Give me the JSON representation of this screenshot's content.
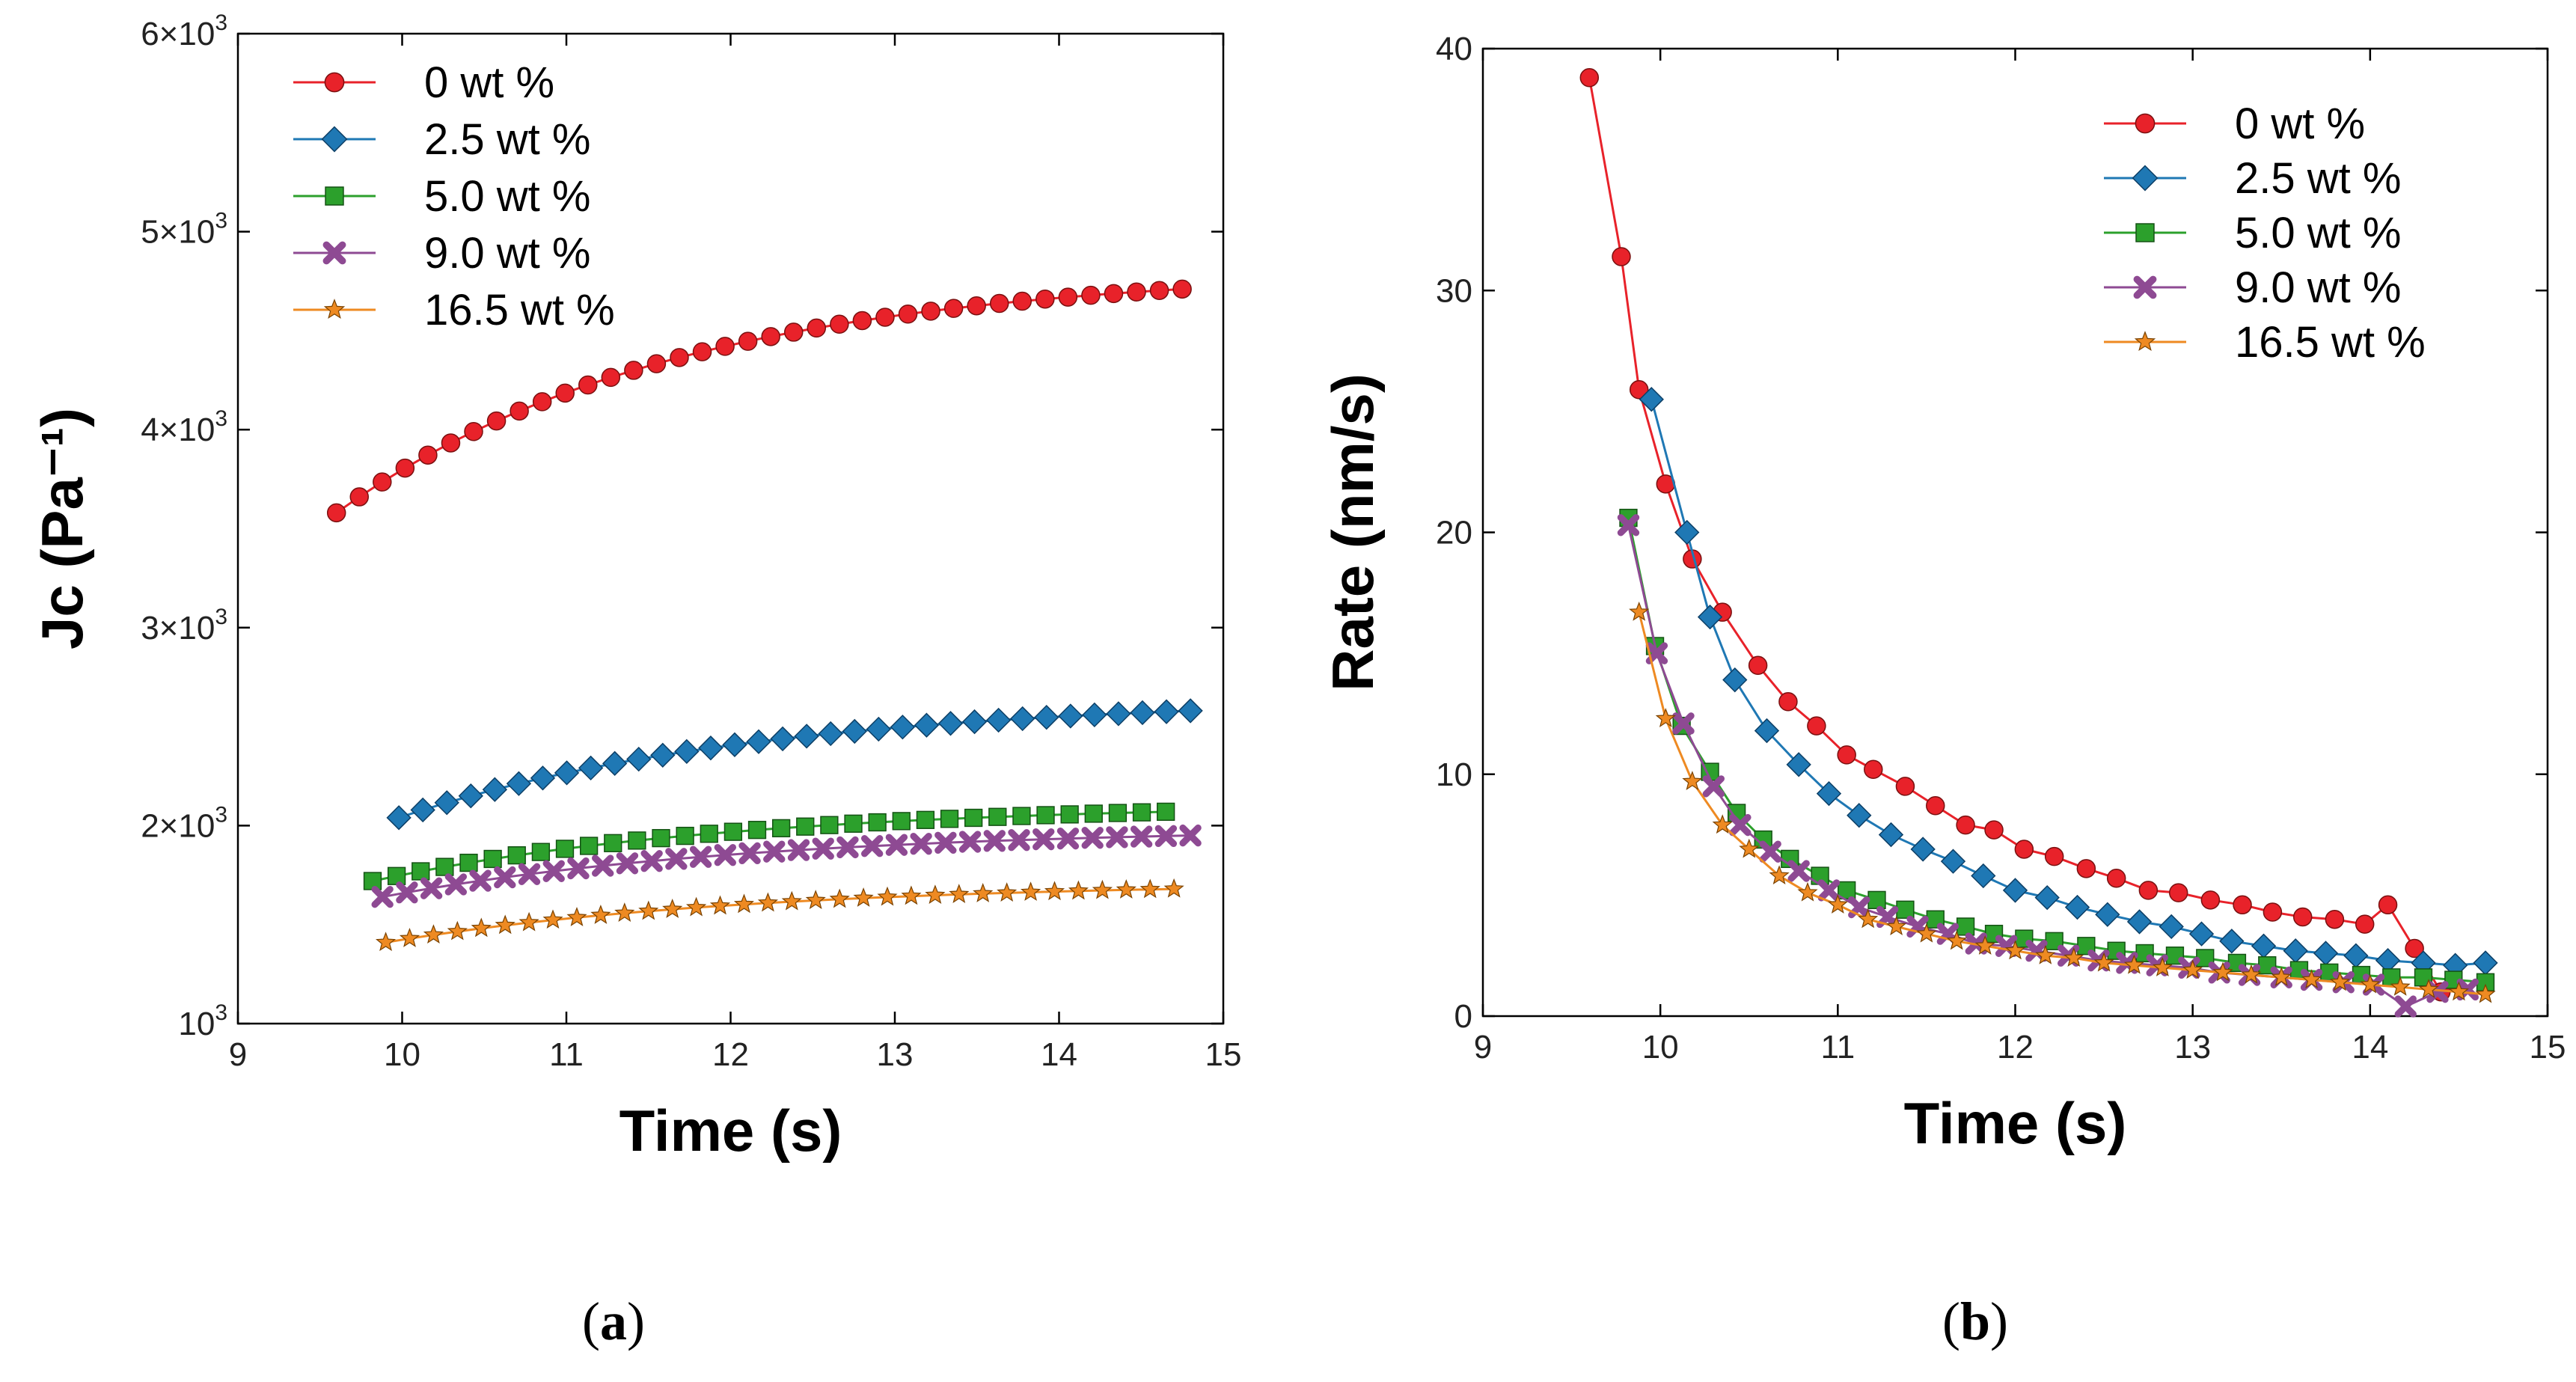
{
  "colors": {
    "s0": "#e8222a",
    "s25": "#1f78b4",
    "s50": "#2ca02c",
    "s90": "#8e4a93",
    "s165": "#ee8a22"
  },
  "captions": {
    "a": "a",
    "b": "b"
  },
  "chart_data": [
    {
      "type": "scatter",
      "title": "",
      "xlabel": "Time (s)",
      "ylabel": "Jc (Pa⁻¹)",
      "xlim": [
        9,
        15
      ],
      "ylim": [
        1000,
        6000
      ],
      "xticks": [
        "9",
        "10",
        "11",
        "12",
        "13",
        "14",
        "15"
      ],
      "yticks": [
        {
          "value": 1000,
          "mant": "10",
          "exp": "3"
        },
        {
          "value": 2000,
          "mant": "2×10",
          "exp": "3"
        },
        {
          "value": 3000,
          "mant": "3×10",
          "exp": "3"
        },
        {
          "value": 4000,
          "mant": "4×10",
          "exp": "3"
        },
        {
          "value": 5000,
          "mant": "5×10",
          "exp": "3"
        },
        {
          "value": 6000,
          "mant": "6×10",
          "exp": "3"
        }
      ],
      "legend_position": "top-left",
      "series": [
        {
          "name": "0 wt %",
          "marker": "circle",
          "color": "#e8222a",
          "x_start": 9.6,
          "x_end": 14.75,
          "n": 38,
          "y_start": 3580,
          "y_end": 4710,
          "shape": 2.5
        },
        {
          "name": "2.5 wt %",
          "marker": "diamond",
          "color": "#1f78b4",
          "x_start": 9.98,
          "x_end": 14.8,
          "n": 34,
          "y_start": 2040,
          "y_end": 2580,
          "shape": 2.2
        },
        {
          "name": "5.0 wt %",
          "marker": "square",
          "color": "#2ca02c",
          "x_start": 9.82,
          "x_end": 14.65,
          "n": 34,
          "y_start": 1720,
          "y_end": 2070,
          "shape": 2.2
        },
        {
          "name": "9.0 wt %",
          "marker": "x",
          "color": "#8e4a93",
          "x_start": 9.88,
          "x_end": 14.8,
          "n": 34,
          "y_start": 1640,
          "y_end": 1950,
          "shape": 2.2
        },
        {
          "name": "16.5 wt %",
          "marker": "star",
          "color": "#ee8a22",
          "x_start": 9.9,
          "x_end": 14.7,
          "n": 34,
          "y_start": 1410,
          "y_end": 1680,
          "shape": 2.2
        }
      ]
    },
    {
      "type": "line",
      "title": "",
      "xlabel": "Time (s)",
      "ylabel": "Rate (nm/s)",
      "xlim": [
        9,
        15
      ],
      "ylim": [
        0,
        40
      ],
      "xticks": [
        "9",
        "10",
        "11",
        "12",
        "13",
        "14",
        "15"
      ],
      "yticks": [
        "0",
        "10",
        "20",
        "30",
        "40"
      ],
      "legend_position": "top-right",
      "series": [
        {
          "name": "0 wt %",
          "marker": "circle",
          "color": "#e8222a",
          "points": [
            [
              9.6,
              38.8
            ],
            [
              9.78,
              31.4
            ],
            [
              9.88,
              25.9
            ],
            [
              10.03,
              22.0
            ],
            [
              10.18,
              18.9
            ],
            [
              10.35,
              16.7
            ],
            [
              10.55,
              14.5
            ],
            [
              10.72,
              13.0
            ],
            [
              10.88,
              12.0
            ],
            [
              11.05,
              10.8
            ],
            [
              11.2,
              10.2
            ],
            [
              11.38,
              9.5
            ],
            [
              11.55,
              8.7
            ],
            [
              11.72,
              7.9
            ],
            [
              11.88,
              7.7
            ],
            [
              12.05,
              6.9
            ],
            [
              12.22,
              6.6
            ],
            [
              12.4,
              6.1
            ],
            [
              12.57,
              5.7
            ],
            [
              12.75,
              5.2
            ],
            [
              12.92,
              5.1
            ],
            [
              13.1,
              4.8
            ],
            [
              13.28,
              4.6
            ],
            [
              13.45,
              4.3
            ],
            [
              13.62,
              4.1
            ],
            [
              13.8,
              4.0
            ],
            [
              13.97,
              3.8
            ],
            [
              14.1,
              4.6
            ],
            [
              14.25,
              2.8
            ],
            [
              14.4,
              1.0
            ]
          ]
        },
        {
          "name": "2.5 wt %",
          "marker": "diamond",
          "color": "#1f78b4",
          "points": [
            [
              9.95,
              25.5
            ],
            [
              10.15,
              20.0
            ],
            [
              10.28,
              16.5
            ],
            [
              10.42,
              13.9
            ],
            [
              10.6,
              11.8
            ],
            [
              10.78,
              10.4
            ],
            [
              10.95,
              9.2
            ],
            [
              11.12,
              8.3
            ],
            [
              11.3,
              7.5
            ],
            [
              11.48,
              6.9
            ],
            [
              11.65,
              6.4
            ],
            [
              11.82,
              5.8
            ],
            [
              12.0,
              5.2
            ],
            [
              12.18,
              4.9
            ],
            [
              12.35,
              4.5
            ],
            [
              12.52,
              4.2
            ],
            [
              12.7,
              3.9
            ],
            [
              12.88,
              3.7
            ],
            [
              13.05,
              3.4
            ],
            [
              13.22,
              3.1
            ],
            [
              13.4,
              2.9
            ],
            [
              13.58,
              2.7
            ],
            [
              13.75,
              2.6
            ],
            [
              13.92,
              2.5
            ],
            [
              14.1,
              2.3
            ],
            [
              14.3,
              2.2
            ],
            [
              14.48,
              2.1
            ],
            [
              14.65,
              2.2
            ]
          ]
        },
        {
          "name": "5.0 wt %",
          "marker": "square",
          "color": "#2ca02c",
          "points": [
            [
              9.82,
              20.6
            ],
            [
              9.97,
              15.3
            ],
            [
              10.12,
              12.0
            ],
            [
              10.28,
              10.1
            ],
            [
              10.43,
              8.4
            ],
            [
              10.58,
              7.3
            ],
            [
              10.73,
              6.5
            ],
            [
              10.9,
              5.8
            ],
            [
              11.05,
              5.2
            ],
            [
              11.22,
              4.8
            ],
            [
              11.38,
              4.4
            ],
            [
              11.55,
              4.0
            ],
            [
              11.72,
              3.7
            ],
            [
              11.88,
              3.4
            ],
            [
              12.05,
              3.2
            ],
            [
              12.22,
              3.1
            ],
            [
              12.4,
              2.9
            ],
            [
              12.57,
              2.7
            ],
            [
              12.73,
              2.6
            ],
            [
              12.9,
              2.5
            ],
            [
              13.07,
              2.4
            ],
            [
              13.25,
              2.2
            ],
            [
              13.42,
              2.1
            ],
            [
              13.6,
              1.9
            ],
            [
              13.77,
              1.8
            ],
            [
              13.95,
              1.7
            ],
            [
              14.12,
              1.6
            ],
            [
              14.3,
              1.6
            ],
            [
              14.47,
              1.5
            ],
            [
              14.65,
              1.4
            ]
          ]
        },
        {
          "name": "9.0 wt %",
          "marker": "x",
          "color": "#8e4a93",
          "points": [
            [
              9.82,
              20.3
            ],
            [
              9.98,
              15.0
            ],
            [
              10.13,
              12.1
            ],
            [
              10.3,
              9.5
            ],
            [
              10.45,
              7.9
            ],
            [
              10.62,
              6.8
            ],
            [
              10.78,
              6.0
            ],
            [
              10.95,
              5.2
            ],
            [
              11.12,
              4.5
            ],
            [
              11.28,
              4.1
            ],
            [
              11.45,
              3.7
            ],
            [
              11.62,
              3.4
            ],
            [
              11.78,
              3.0
            ],
            [
              11.95,
              2.9
            ],
            [
              12.12,
              2.7
            ],
            [
              12.3,
              2.5
            ],
            [
              12.47,
              2.3
            ],
            [
              12.63,
              2.2
            ],
            [
              12.8,
              2.1
            ],
            [
              12.98,
              2.0
            ],
            [
              13.15,
              1.8
            ],
            [
              13.32,
              1.7
            ],
            [
              13.5,
              1.6
            ],
            [
              13.67,
              1.5
            ],
            [
              13.85,
              1.4
            ],
            [
              14.02,
              1.3
            ],
            [
              14.2,
              0.4
            ],
            [
              14.38,
              1.0
            ],
            [
              14.55,
              1.1
            ]
          ]
        },
        {
          "name": "16.5 wt %",
          "marker": "star",
          "color": "#ee8a22",
          "points": [
            [
              9.88,
              16.7
            ],
            [
              10.03,
              12.3
            ],
            [
              10.18,
              9.7
            ],
            [
              10.35,
              7.9
            ],
            [
              10.5,
              6.9
            ],
            [
              10.67,
              5.8
            ],
            [
              10.83,
              5.1
            ],
            [
              11.0,
              4.6
            ],
            [
              11.17,
              4.0
            ],
            [
              11.33,
              3.7
            ],
            [
              11.5,
              3.4
            ],
            [
              11.67,
              3.1
            ],
            [
              11.83,
              2.9
            ],
            [
              12.0,
              2.7
            ],
            [
              12.17,
              2.5
            ],
            [
              12.33,
              2.4
            ],
            [
              12.5,
              2.2
            ],
            [
              12.67,
              2.1
            ],
            [
              12.83,
              2.0
            ],
            [
              13.0,
              1.9
            ],
            [
              13.17,
              1.8
            ],
            [
              13.33,
              1.7
            ],
            [
              13.5,
              1.6
            ],
            [
              13.67,
              1.5
            ],
            [
              13.83,
              1.4
            ],
            [
              14.0,
              1.3
            ],
            [
              14.17,
              1.2
            ],
            [
              14.33,
              1.1
            ],
            [
              14.5,
              1.0
            ],
            [
              14.65,
              0.9
            ]
          ]
        }
      ]
    }
  ]
}
